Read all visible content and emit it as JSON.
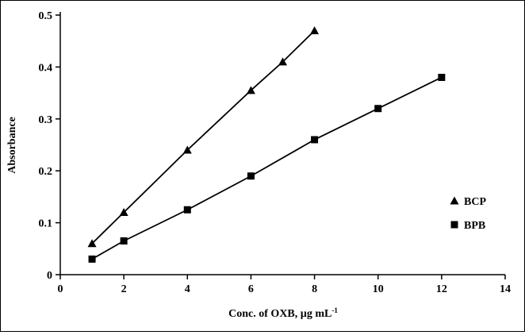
{
  "chart_data": {
    "type": "line",
    "title": "",
    "xlabel": "Conc. of OXB,  µg mL",
    "xlabel_sup": "-1",
    "ylabel": "Absorbance",
    "xlim": [
      0,
      14
    ],
    "ylim": [
      0,
      0.5
    ],
    "xticks": [
      0,
      2,
      4,
      6,
      8,
      10,
      12,
      14
    ],
    "yticks": [
      0,
      0.1,
      0.2,
      0.3,
      0.4,
      0.5
    ],
    "grid": false,
    "line_color": "#000000",
    "marker_color": "#000000",
    "legend_position": "right-lower",
    "series": [
      {
        "name": "BCP",
        "marker": "triangle",
        "x": [
          1,
          2,
          4,
          6,
          7,
          8
        ],
        "y": [
          0.06,
          0.12,
          0.24,
          0.355,
          0.41,
          0.47
        ]
      },
      {
        "name": "BPB",
        "marker": "square",
        "x": [
          1,
          2,
          4,
          6,
          8,
          10,
          12
        ],
        "y": [
          0.03,
          0.065,
          0.125,
          0.19,
          0.26,
          0.32,
          0.38
        ]
      }
    ]
  }
}
